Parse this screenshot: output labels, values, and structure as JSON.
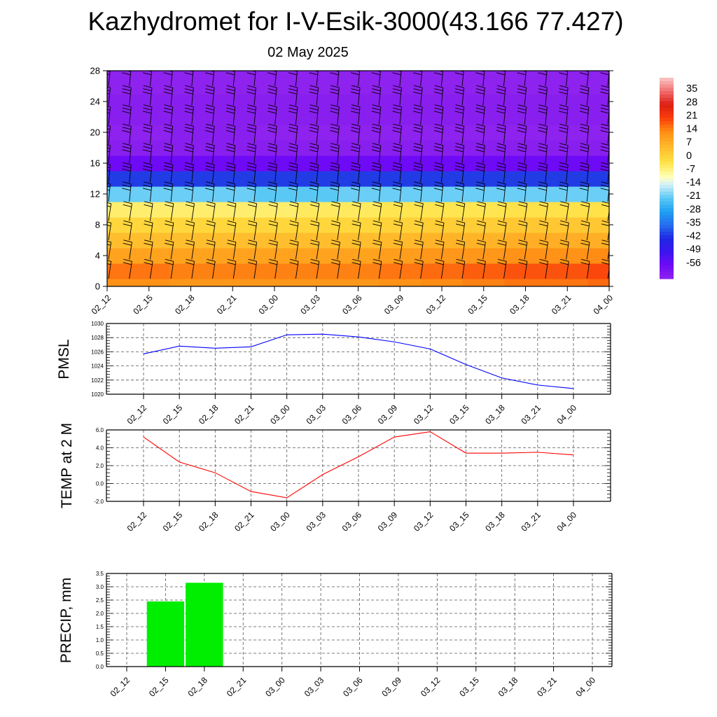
{
  "title": "Kazhydromet for I-V-Esik-3000(43.166 77.427)",
  "subtitle": "02 May 2025",
  "time_labels": [
    "02_12",
    "02_15",
    "02_18",
    "02_21",
    "03_00",
    "03_03",
    "03_06",
    "03_09",
    "03_12",
    "03_15",
    "03_18",
    "03_21",
    "04_00"
  ],
  "chart_data": [
    {
      "type": "heatmap",
      "name": "temperature-wind-cross-section",
      "x": [
        "02_12",
        "02_15",
        "02_18",
        "02_21",
        "03_00",
        "03_03",
        "03_06",
        "03_09",
        "03_12",
        "03_15",
        "03_18",
        "03_21",
        "04_00"
      ],
      "ylim": [
        0,
        28
      ],
      "yticks": [
        0,
        4,
        8,
        12,
        16,
        20,
        24,
        28
      ],
      "y_levels": [
        0,
        2,
        4,
        6,
        8,
        10,
        12,
        14,
        16,
        18,
        20,
        22,
        24,
        26,
        28
      ],
      "values": [
        [
          13,
          16,
          10,
          5,
          0,
          -5,
          -20,
          -40,
          -56,
          -62,
          -64,
          -62,
          -62,
          -64,
          -64
        ],
        [
          13,
          16,
          10,
          5,
          0,
          -5,
          -20,
          -40,
          -56,
          -62,
          -64,
          -62,
          -62,
          -64,
          -64
        ],
        [
          12,
          15,
          10,
          5,
          0,
          -5,
          -20,
          -40,
          -56,
          -62,
          -62,
          -62,
          -62,
          -64,
          -64
        ],
        [
          12,
          15,
          10,
          5,
          0,
          -5,
          -20,
          -40,
          -56,
          -62,
          -62,
          -62,
          -62,
          -64,
          -64
        ],
        [
          12,
          15,
          10,
          5,
          0,
          -5,
          -21,
          -40,
          -56,
          -62,
          -63,
          -62,
          -62,
          -64,
          -64
        ],
        [
          12,
          15,
          10,
          5,
          0,
          -4,
          -21,
          -40,
          -56,
          -62,
          -64,
          -62,
          -62,
          -64,
          -64
        ],
        [
          12,
          15,
          10,
          5,
          0,
          -4,
          -20,
          -40,
          -56,
          -62,
          -64,
          -62,
          -62,
          -64,
          -64
        ],
        [
          13,
          16,
          11,
          6,
          1,
          -3,
          -20,
          -40,
          -56,
          -62,
          -64,
          -62,
          -62,
          -64,
          -64
        ],
        [
          14,
          17,
          12,
          7,
          2,
          -3,
          -20,
          -40,
          -56,
          -62,
          -64,
          -62,
          -62,
          -64,
          -64
        ],
        [
          15,
          18,
          12,
          7,
          2,
          -3,
          -20,
          -40,
          -56,
          -62,
          -64,
          -62,
          -62,
          -64,
          -64
        ],
        [
          16,
          19,
          13,
          8,
          3,
          -2,
          -20,
          -40,
          -56,
          -62,
          -64,
          -62,
          -62,
          -64,
          -64
        ],
        [
          16,
          19,
          13,
          8,
          3,
          -2,
          -20,
          -40,
          -56,
          -62,
          -64,
          -62,
          -62,
          -64,
          -64
        ],
        [
          17,
          20,
          14,
          8,
          3,
          -2,
          -20,
          -40,
          -56,
          -62,
          -64,
          -62,
          -62,
          -64,
          -64
        ]
      ],
      "colorbar": {
        "labels": [
          "35",
          "28",
          "21",
          "14",
          "7",
          "0",
          "-7",
          "-14",
          "-21",
          "-28",
          "-35",
          "-42",
          "-49",
          "-56"
        ],
        "range": [
          -63,
          42
        ]
      },
      "wind_barbs": true
    },
    {
      "type": "line",
      "name": "pmsl",
      "ylabel": "PMSL",
      "x": [
        "02_12",
        "02_15",
        "02_18",
        "02_21",
        "03_00",
        "03_03",
        "03_06",
        "03_09",
        "03_12",
        "03_15",
        "03_18",
        "03_21",
        "04_00"
      ],
      "values": [
        1025.7,
        1026.8,
        1026.5,
        1026.7,
        1028.4,
        1028.5,
        1028.1,
        1027.4,
        1026.4,
        1024.2,
        1022.3,
        1021.3,
        1020.8
      ],
      "ylim": [
        1020,
        1030
      ],
      "yticks": [
        "1020",
        "1022",
        "1024",
        "1026",
        "1028",
        "1030"
      ],
      "color": "#0000ff",
      "grid": true
    },
    {
      "type": "line",
      "name": "temp-2m",
      "ylabel": "TEMP at 2 M",
      "x": [
        "02_12",
        "02_15",
        "02_18",
        "02_21",
        "03_00",
        "03_03",
        "03_06",
        "03_09",
        "03_12",
        "03_15",
        "03_18",
        "03_21",
        "04_00"
      ],
      "values": [
        5.2,
        2.4,
        1.2,
        -0.9,
        -1.6,
        1.0,
        3.0,
        5.2,
        5.8,
        3.4,
        3.4,
        3.5,
        3.2
      ],
      "ylim": [
        -2,
        6
      ],
      "yticks": [
        "-2.0",
        "0.0",
        "2.0",
        "4.0",
        "6.0"
      ],
      "color": "#ff0000",
      "grid": true
    },
    {
      "type": "bar",
      "name": "precip",
      "ylabel": "PRECIP, mm",
      "x": [
        "02_12",
        "02_15",
        "02_18",
        "02_21",
        "03_00",
        "03_03",
        "03_06",
        "03_09",
        "03_12",
        "03_15",
        "03_18",
        "03_21",
        "04_00"
      ],
      "values": [
        0,
        2.45,
        3.15,
        0,
        0,
        0,
        0,
        0,
        0,
        0,
        0,
        0,
        0
      ],
      "ylim": [
        0,
        3.5
      ],
      "yticks": [
        "0.0",
        "0.5",
        "1.0",
        "1.5",
        "2.0",
        "2.5",
        "3.0",
        "3.5"
      ],
      "color": "#00ee00",
      "grid": true
    }
  ]
}
